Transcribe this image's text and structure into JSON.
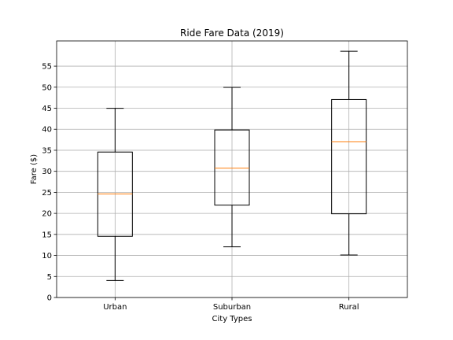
{
  "chart_data": {
    "type": "box",
    "title": "Ride Fare Data (2019)",
    "xlabel": "City Types",
    "ylabel": "Fare ($)",
    "ylim": [
      0,
      61
    ],
    "yticks": [
      0,
      5,
      10,
      15,
      20,
      25,
      30,
      35,
      40,
      45,
      50,
      55
    ],
    "grid": true,
    "categories": [
      "Urban",
      "Suburban",
      "Rural"
    ],
    "boxes": [
      {
        "category": "Urban",
        "whisker_low": 4.05,
        "q1": 14.55,
        "median": 24.64,
        "q3": 34.58,
        "whisker_high": 44.97
      },
      {
        "category": "Suburban",
        "whisker_low": 12.05,
        "q1": 21.97,
        "median": 30.75,
        "q3": 39.83,
        "whisker_high": 49.96
      },
      {
        "category": "Rural",
        "whisker_low": 10.11,
        "q1": 19.9,
        "median": 37.05,
        "q3": 47.07,
        "whisker_high": 58.55
      }
    ],
    "colors": {
      "box": "#000000",
      "median": "#ff7f0e",
      "grid": "#b0b0b0",
      "axes": "#000000"
    }
  }
}
